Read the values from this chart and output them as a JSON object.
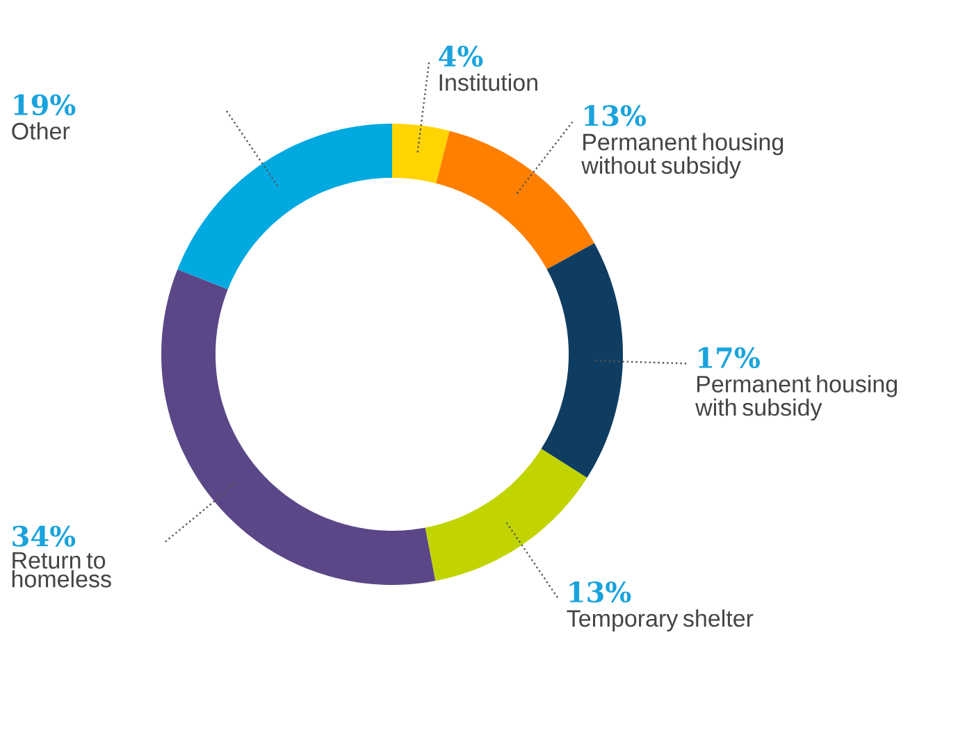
{
  "chart_data": {
    "type": "donut",
    "categories": [
      "Institution",
      "Permanent housing without subsidy",
      "Permanent housing with subsidy",
      "Temporary shelter",
      "Return to homeless",
      "Other"
    ],
    "values": [
      4,
      13,
      17,
      13,
      34,
      19
    ],
    "value_labels": [
      "4%",
      "13%",
      "17%",
      "13%",
      "34%",
      "19%"
    ],
    "colors": [
      "#ffd400",
      "#ff7f00",
      "#0f3d62",
      "#c2d400",
      "#5b4787",
      "#00a9e0"
    ]
  }
}
